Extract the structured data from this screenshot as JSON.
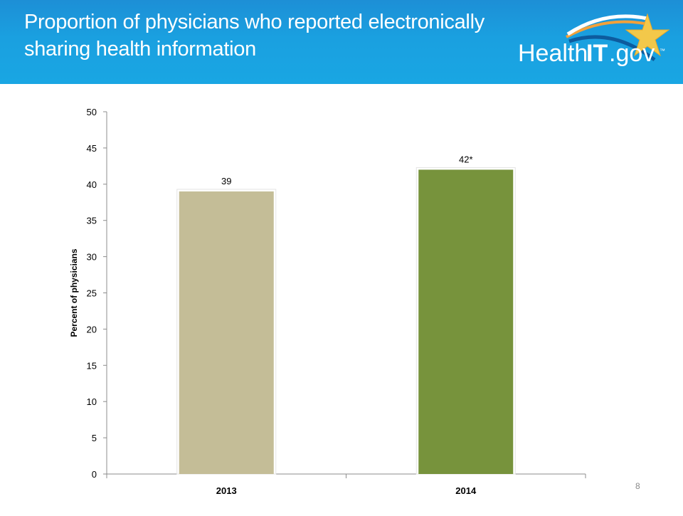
{
  "header": {
    "title_line1": "Proportion of physicians who reported electronically",
    "title_line2": "sharing health information",
    "logo_text_main": "Health",
    "logo_text_it": "IT",
    "logo_text_domain": ".gov",
    "logo_trademark": "™"
  },
  "page_number": "8",
  "colors": {
    "header_blue": "#1a9ede",
    "bar_2013": "#c4bd97",
    "bar_2014": "#77933c",
    "star": "#f3c84a"
  },
  "chart_data": {
    "type": "bar",
    "categories": [
      "2013",
      "2014"
    ],
    "values": [
      39,
      42
    ],
    "data_labels": [
      "39",
      "42*"
    ],
    "title": "",
    "xlabel": "",
    "ylabel": "Percent of physicians",
    "ylim": [
      0,
      50
    ],
    "yticks": [
      0,
      5,
      10,
      15,
      20,
      25,
      30,
      35,
      40,
      45,
      50
    ],
    "grid": false,
    "legend": "none"
  }
}
